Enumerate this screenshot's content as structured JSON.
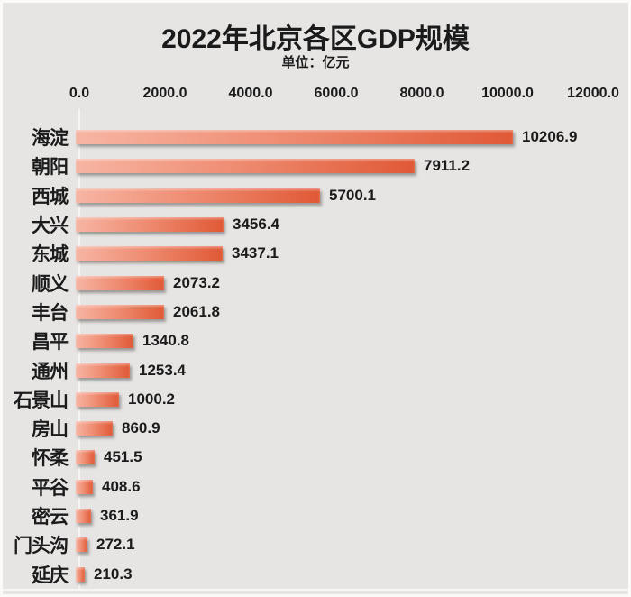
{
  "page": {
    "background_color": "#e7e5e4",
    "text_color": "#1b1b1b"
  },
  "chart_data": {
    "type": "bar",
    "orientation": "horizontal",
    "title": "2022年北京各区GDP规模",
    "subtitle": "单位：亿元",
    "categories": [
      "海淀",
      "朝阳",
      "西城",
      "大兴",
      "东城",
      "顺义",
      "丰台",
      "昌平",
      "通州",
      "石景山",
      "房山",
      "怀柔",
      "平谷",
      "密云",
      "门头沟",
      "延庆"
    ],
    "values": [
      10206.9,
      7911.2,
      5700.1,
      3456.4,
      3437.1,
      2073.2,
      2061.8,
      1340.8,
      1253.4,
      1000.2,
      860.9,
      451.5,
      408.6,
      361.9,
      272.1,
      210.3
    ],
    "value_labels": [
      "10206.9",
      "7911.2",
      "5700.1",
      "3456.4",
      "3437.1",
      "2073.2",
      "2061.8",
      "1340.8",
      "1253.4",
      "1000.2",
      "860.9",
      "451.5",
      "408.6",
      "361.9",
      "272.1",
      "210.3"
    ],
    "x_ticks": [
      0,
      2000,
      4000,
      6000,
      8000,
      10000,
      12000
    ],
    "x_tick_labels": [
      "0.0",
      "2000.0",
      "4000.0",
      "6000.0",
      "8000.0",
      "10000.0",
      "12000.0"
    ],
    "xlim": [
      0,
      12000
    ],
    "grid": false,
    "legend": false,
    "bar_color_start": "#f7b5a3",
    "bar_color_end": "#e05936",
    "axis_line_color": "#f8f6f5"
  }
}
